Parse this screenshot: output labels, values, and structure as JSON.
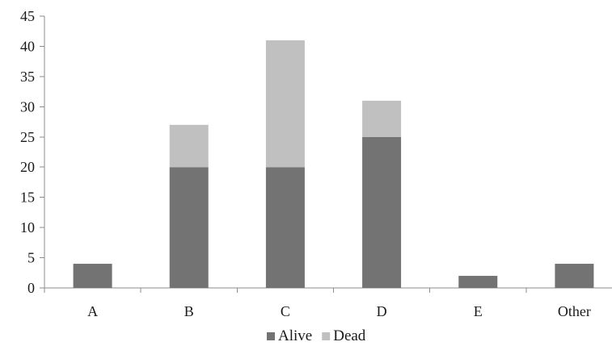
{
  "chart_data": {
    "type": "bar",
    "stacked": true,
    "title": "",
    "xlabel": "",
    "ylabel": "",
    "categories": [
      "A",
      "B",
      "C",
      "D",
      "E",
      "Other"
    ],
    "series": [
      {
        "name": "Alive",
        "color": "#737373",
        "values": [
          4,
          20,
          20,
          25,
          2,
          4
        ]
      },
      {
        "name": "Dead",
        "color": "#c0c0c0",
        "values": [
          0,
          7,
          21,
          6,
          0,
          0
        ]
      }
    ],
    "ylim": [
      0,
      45
    ],
    "yticks": [
      "0",
      "5",
      "10",
      "15",
      "20",
      "25",
      "30",
      "35",
      "40",
      "45"
    ],
    "grid": false,
    "legend_position": "bottom"
  }
}
